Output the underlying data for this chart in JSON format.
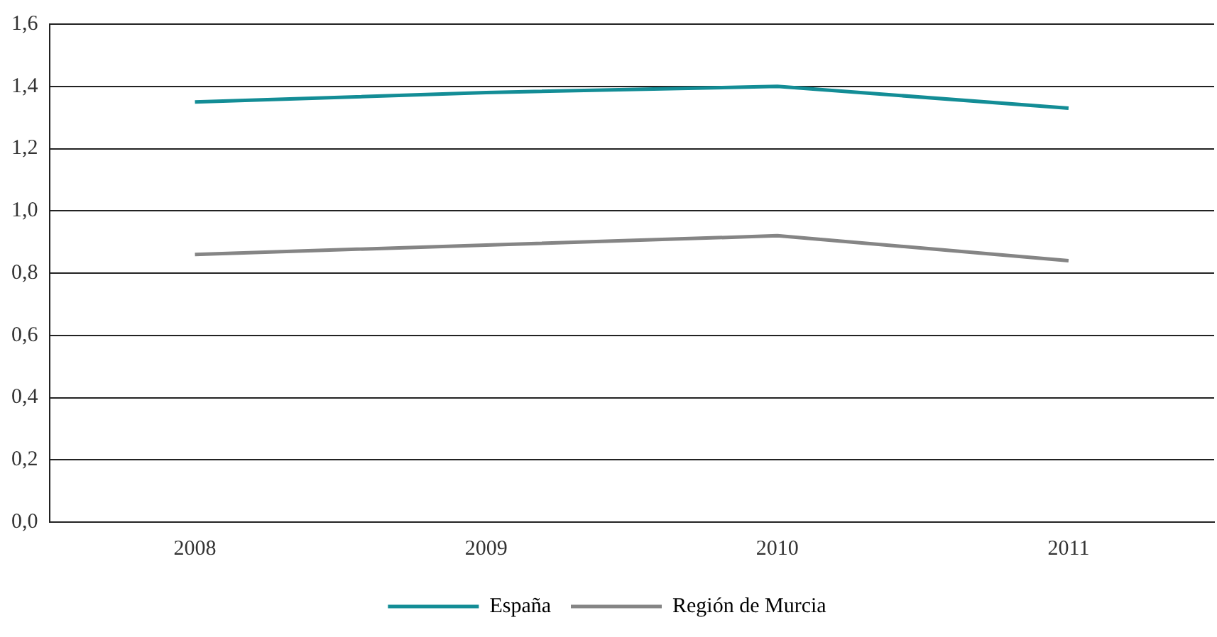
{
  "chart_data": {
    "type": "line",
    "categories": [
      "2008",
      "2009",
      "2010",
      "2011"
    ],
    "series": [
      {
        "name": "España",
        "color": "#138d96",
        "values": [
          1.35,
          1.38,
          1.4,
          1.33
        ]
      },
      {
        "name": "Región de Murcia",
        "color": "#858585",
        "values": [
          0.86,
          0.89,
          0.92,
          0.84
        ]
      }
    ],
    "ylim": [
      0,
      1.6
    ],
    "yticks": [
      {
        "value": 0,
        "label": "0,0"
      },
      {
        "value": 0.2,
        "label": "0,2"
      },
      {
        "value": 0.4,
        "label": "0,4"
      },
      {
        "value": 0.6,
        "label": "0,6"
      },
      {
        "value": 0.8,
        "label": "0,8"
      },
      {
        "value": 1,
        "label": "1,0"
      },
      {
        "value": 1.2,
        "label": "1,2"
      },
      {
        "value": 1.4,
        "label": "1,4"
      },
      {
        "value": 1.6,
        "label": "1,6"
      }
    ],
    "grid": "y",
    "legend": "bottom",
    "marker": "none",
    "line_style": "solid"
  }
}
